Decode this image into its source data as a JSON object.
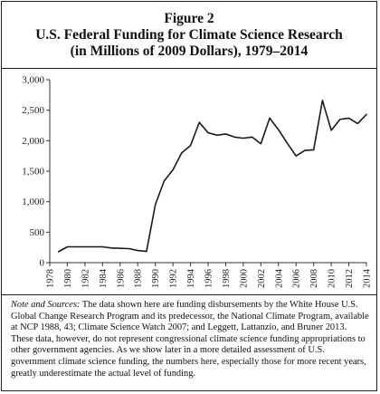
{
  "figure": {
    "label": "Figure 2",
    "title_line1": "U.S. Federal Funding for Climate Science Research",
    "title_line2": "(in Millions of 2009 Dollars), 1979–2014"
  },
  "chart_data": {
    "type": "line",
    "title": "U.S. Federal Funding for Climate Science Research (in Millions of 2009 Dollars), 1979–2014",
    "xlabel": "",
    "ylabel": "",
    "xlim": [
      1978,
      2014
    ],
    "ylim": [
      0,
      3000
    ],
    "y_ticks": [
      0,
      500,
      1000,
      1500,
      2000,
      2500,
      3000
    ],
    "y_tick_labels": [
      "0",
      "500",
      "1,000",
      "1,500",
      "2,000",
      "2,500",
      "3,000"
    ],
    "x_ticks": [
      1978,
      1980,
      1982,
      1984,
      1986,
      1988,
      1990,
      1992,
      1994,
      1996,
      1998,
      2000,
      2002,
      2004,
      2006,
      2008,
      2010,
      2012,
      2014
    ],
    "x_tick_labels": [
      "1978",
      "1980",
      "1982",
      "1984",
      "1986",
      "1988",
      "1990",
      "1992",
      "1994",
      "1996",
      "1998",
      "2000",
      "2002",
      "2004",
      "2006",
      "2008",
      "2010",
      "2012",
      "2014"
    ],
    "grid": false,
    "legend": "none",
    "series": [
      {
        "color": "#1a1a1a",
        "x": [
          1979,
          1980,
          1981,
          1982,
          1983,
          1984,
          1985,
          1986,
          1987,
          1988,
          1989,
          1990,
          1991,
          1992,
          1993,
          1994,
          1995,
          1996,
          1997,
          1998,
          1999,
          2000,
          2001,
          2002,
          2003,
          2004,
          2005,
          2006,
          2007,
          2008,
          2009,
          2010,
          2011,
          2012,
          2013,
          2014
        ],
        "values": [
          180,
          260,
          260,
          260,
          260,
          260,
          240,
          235,
          230,
          200,
          185,
          950,
          1340,
          1520,
          1800,
          1920,
          2300,
          2130,
          2090,
          2110,
          2060,
          2040,
          2060,
          1950,
          2370,
          2180,
          1960,
          1750,
          1840,
          1850,
          2660,
          2170,
          2350,
          2370,
          2280,
          2430
        ]
      }
    ]
  },
  "notes": {
    "heading": "Note and Sources:",
    "text": " The data shown here are funding disbursements by the White House U.S. Global Change Research Program and its predecessor, the National Climate Program, available at NCP 1988, 43; Climate Science Watch 2007; and Leggett, Lattanzio, and Bruner 2013. These data, however, do not represent congressional climate science funding appropriations to other government agencies. As we show later in a more detailed assessment of U.S. government climate science funding, the numbers here, especially those for more recent years, greatly underestimate the actual level of funding."
  }
}
